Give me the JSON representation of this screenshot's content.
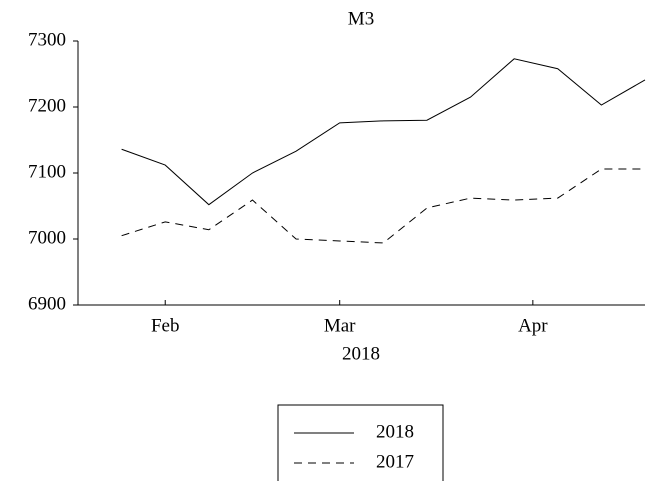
{
  "chart_data": {
    "type": "line",
    "title": "M3",
    "xlabel": "2018",
    "x": [
      24,
      31,
      38,
      45,
      52,
      59,
      66,
      73,
      80,
      87,
      94,
      101,
      108
    ],
    "series": [
      {
        "name": "2018",
        "color": "#000000",
        "dash": "solid",
        "values": [
          7136,
          7112,
          7052,
          7100,
          7133,
          7176,
          7179,
          7180,
          7215,
          7273,
          7258,
          7203,
          7241
        ]
      },
      {
        "name": "2017",
        "color": "#000000",
        "dash": "dashed",
        "values": [
          7005,
          7026,
          7014,
          7059,
          7000,
          6997,
          6994,
          7047,
          7062,
          7059,
          7062,
          7106,
          7106
        ]
      }
    ],
    "xlim": [
      17,
      108
    ],
    "xticks": [
      {
        "value": 31,
        "label": "Feb"
      },
      {
        "value": 59,
        "label": "Mar"
      },
      {
        "value": 90,
        "label": "Apr"
      }
    ],
    "ylim": [
      6900,
      7300
    ],
    "yticks": [
      6900,
      7000,
      7100,
      7200,
      7300
    ],
    "legend": "bottom"
  }
}
